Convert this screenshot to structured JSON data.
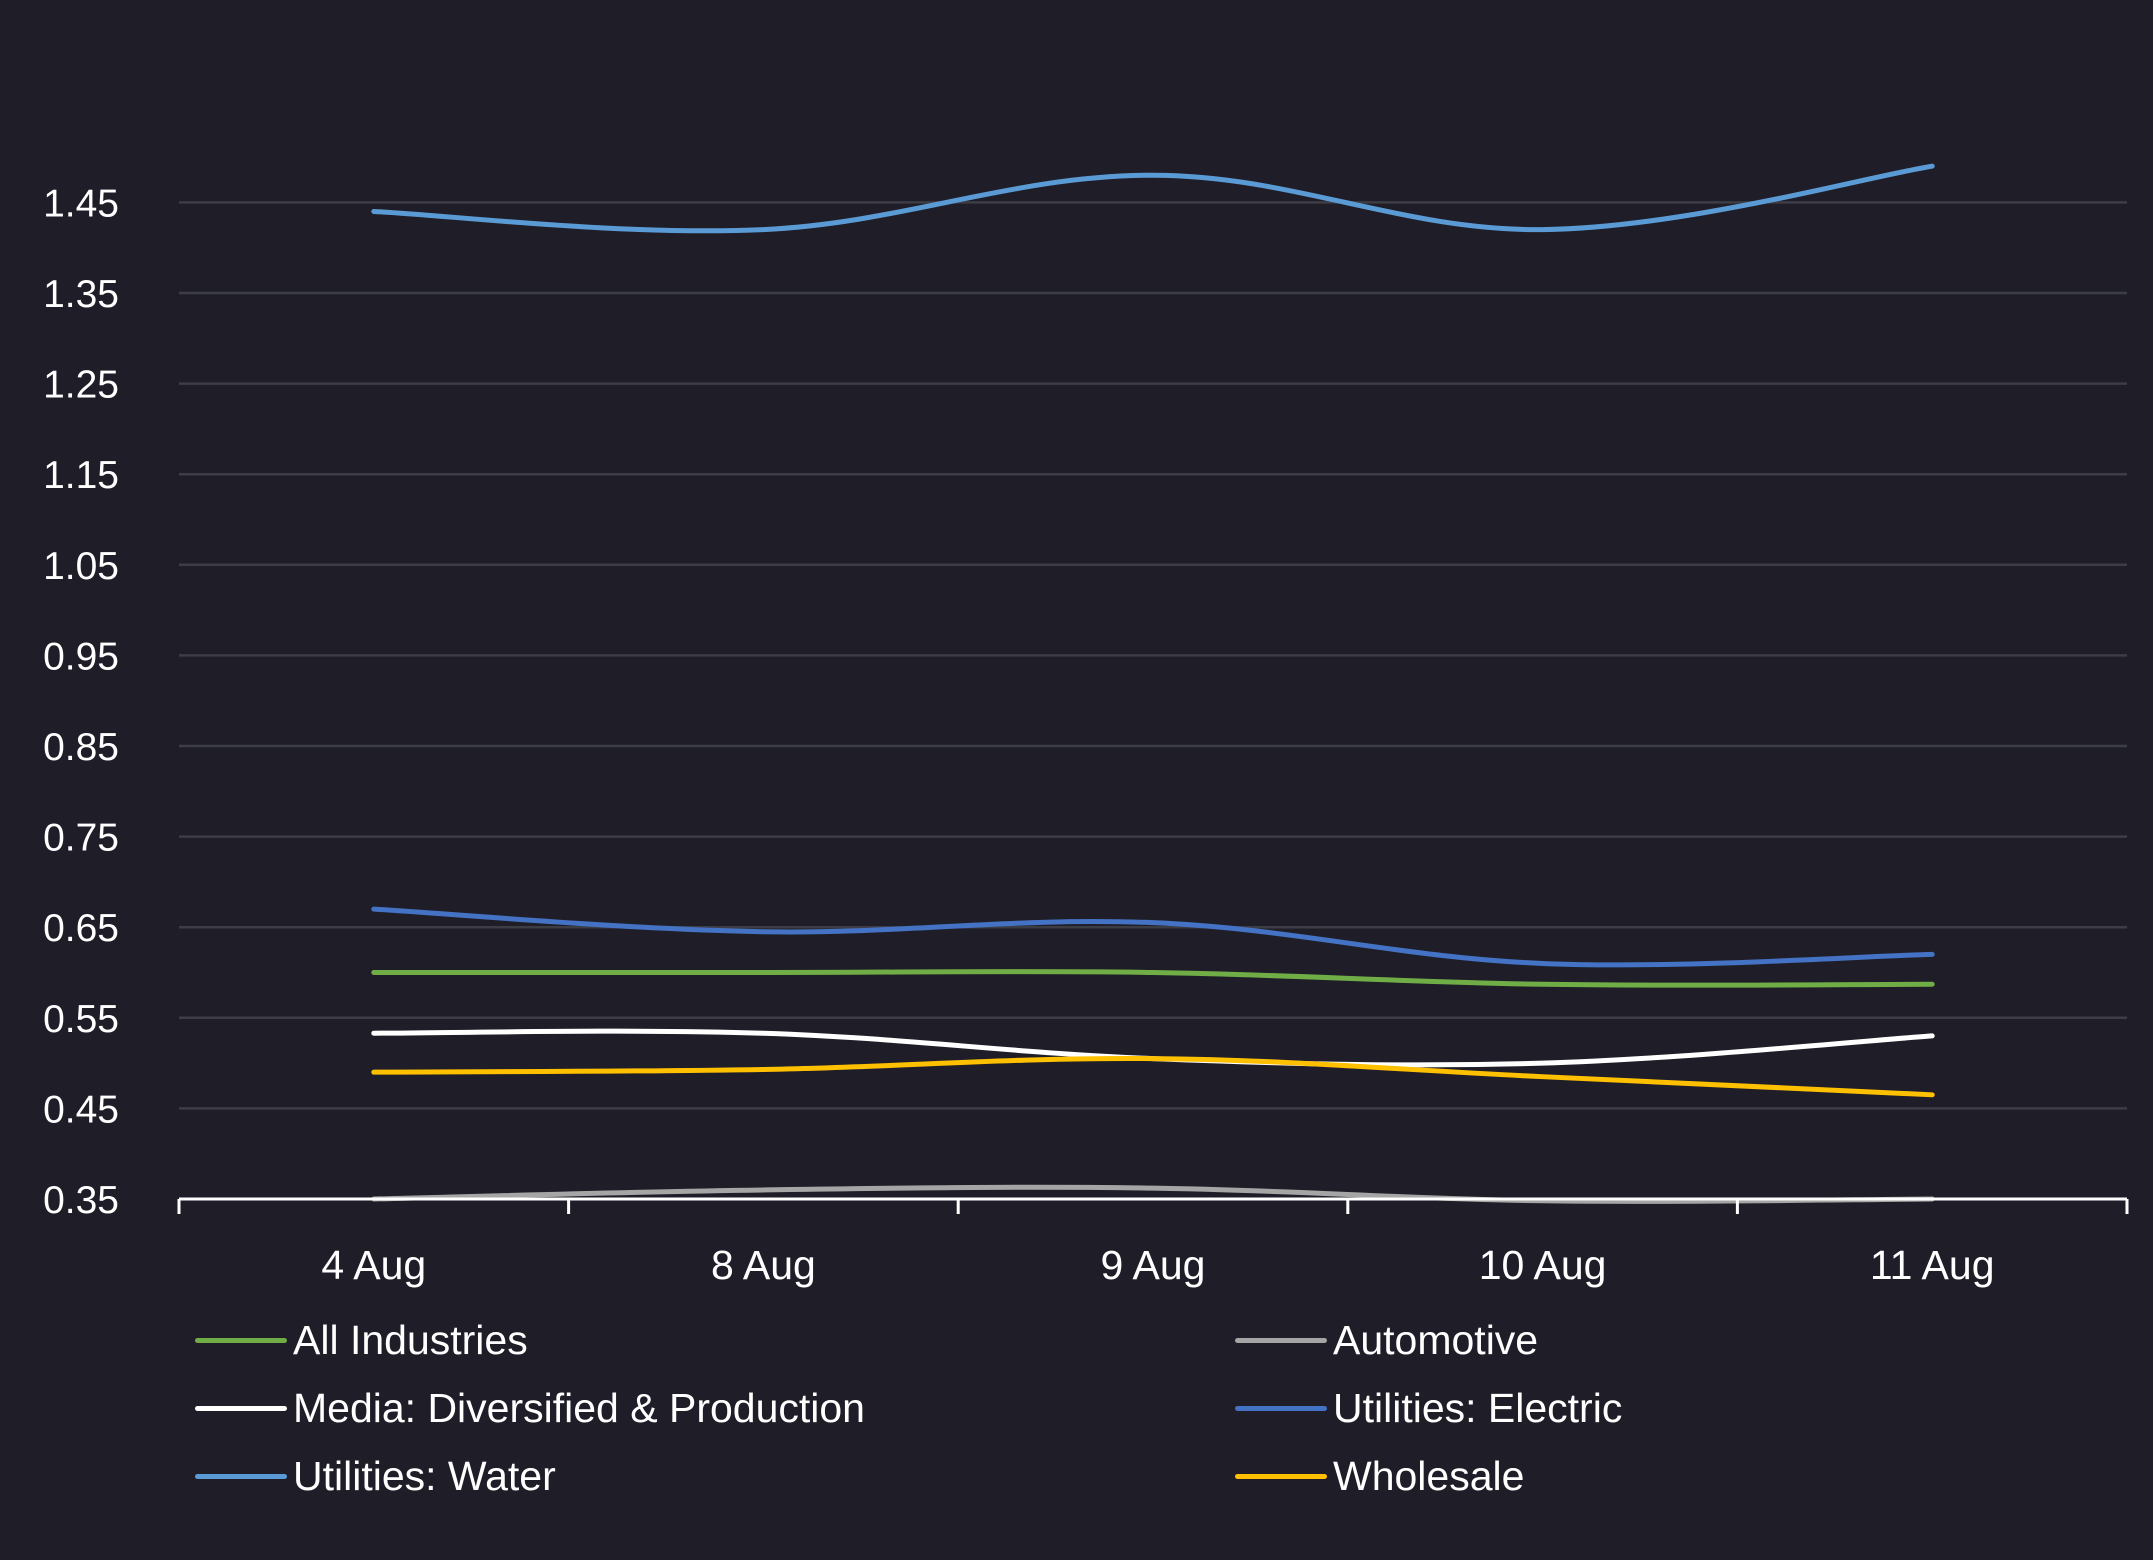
{
  "chart_data": {
    "type": "line",
    "title": "",
    "xlabel": "",
    "ylabel": "",
    "categories": [
      "4 Aug",
      "8 Aug",
      "9 Aug",
      "10 Aug",
      "11 Aug"
    ],
    "y_ticks": [
      "0.35",
      "0.45",
      "0.55",
      "0.65",
      "0.75",
      "0.85",
      "0.95",
      "1.05",
      "1.15",
      "1.25",
      "1.35",
      "1.45"
    ],
    "ylim": [
      0.35,
      1.55
    ],
    "grid": true,
    "legend_position": "bottom",
    "series": [
      {
        "name": "Utilities: Water",
        "color": "#5b9bd5",
        "values": [
          1.44,
          1.42,
          1.48,
          1.42,
          1.49
        ]
      },
      {
        "name": "Utilities: Electric",
        "color": "#4472c4",
        "values": [
          0.67,
          0.645,
          0.655,
          0.61,
          0.62
        ]
      },
      {
        "name": "All Industries",
        "color": "#70ad47",
        "values": [
          0.6,
          0.6,
          0.6,
          0.587,
          0.587
        ]
      },
      {
        "name": "Media: Diversified & Production",
        "color": "#ffffff",
        "values": [
          0.533,
          0.533,
          0.505,
          0.5,
          0.53
        ]
      },
      {
        "name": "Wholesale",
        "color": "#ffc000",
        "values": [
          0.49,
          0.493,
          0.505,
          0.485,
          0.465
        ]
      },
      {
        "name": "Automotive",
        "color": "#a5a5a5",
        "values": [
          0.35,
          0.36,
          0.362,
          0.348,
          0.35
        ]
      }
    ]
  },
  "legend": [
    {
      "label": "All Industries",
      "color": "#70ad47"
    },
    {
      "label": "Automotive",
      "color": "#a5a5a5"
    },
    {
      "label": "Media: Diversified & Production",
      "color": "#ffffff"
    },
    {
      "label": "Utilities: Electric",
      "color": "#4472c4"
    },
    {
      "label": "Utilities: Water",
      "color": "#5b9bd5"
    },
    {
      "label": "Wholesale",
      "color": "#ffc000"
    }
  ]
}
